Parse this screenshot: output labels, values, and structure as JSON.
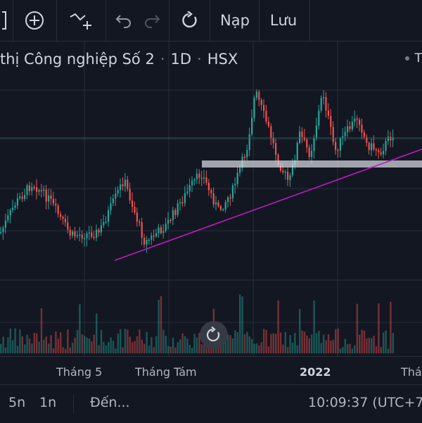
{
  "toolbar": {
    "load_label": "Nạp",
    "save_label": "Lưu",
    "icons": [
      "add-symbol-icon",
      "compare-icon",
      "undo-icon",
      "redo-icon",
      "reload-icon"
    ]
  },
  "symbol": {
    "name_partial": "thị Công nghiệp Số 2",
    "interval": "1D",
    "exchange": "HSX",
    "right_letter": "T"
  },
  "axis": {
    "labels": [
      "Tháng 5",
      "Tháng Tám",
      "2022",
      "Thá"
    ]
  },
  "bottom_bar": {
    "range_5y": "5n",
    "range_1y": "1n",
    "goto": "Đến...",
    "clock": "10:09:37 (UTC+7"
  },
  "colors": {
    "background": "#131722",
    "up": "#26a69a",
    "down": "#ef5350",
    "trendline": "#c219c2",
    "support_zone": "#d1d4dc",
    "grid": "#2a2e39"
  },
  "chart_data": {
    "type": "candlestick",
    "volume_panel": true,
    "annotations": [
      "rising trendline (magenta)",
      "horizontal support zone (gray)"
    ]
  }
}
